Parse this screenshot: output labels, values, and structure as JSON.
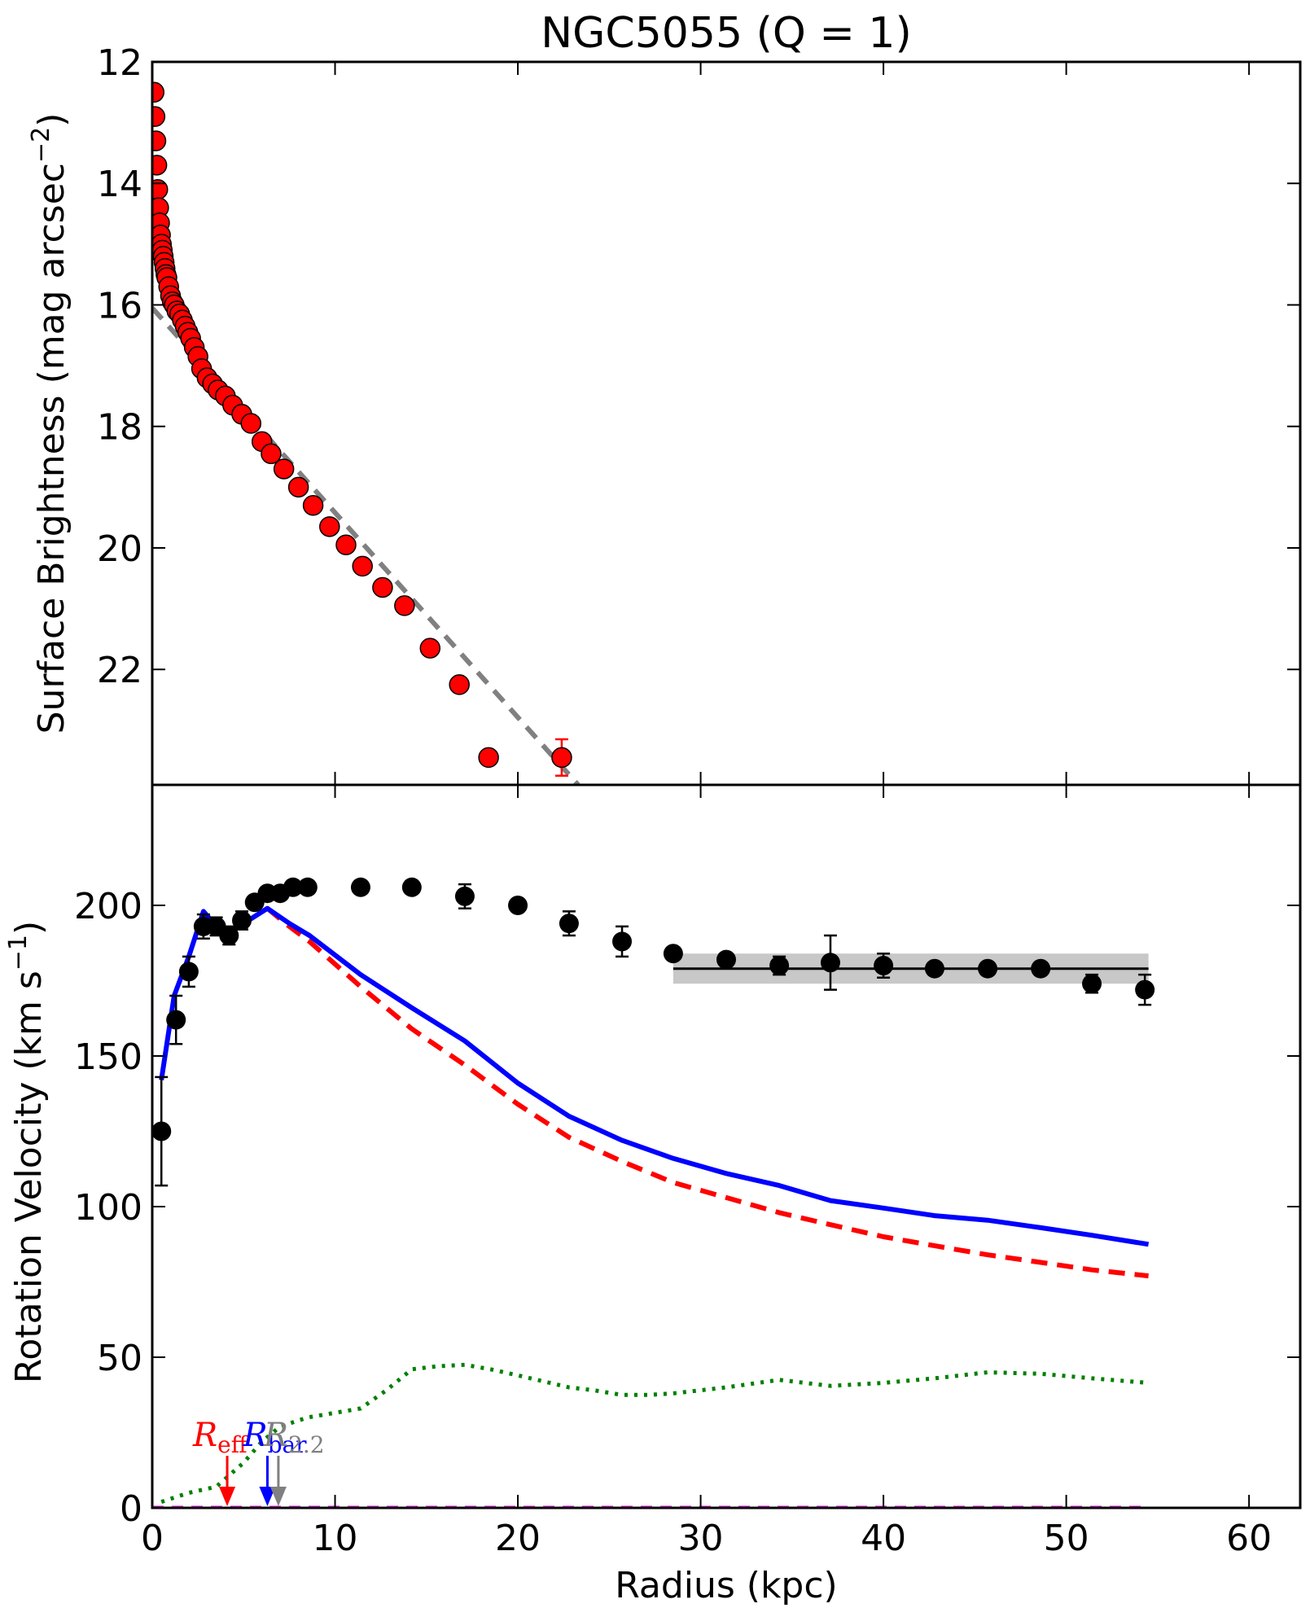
{
  "chart_data": [
    {
      "type": "scatter",
      "panel": "surface-brightness",
      "title": "NGC5055 (Q = 1)",
      "xlabel": "",
      "ylabel": "Surface Brightness (mag arcsec",
      "ylabel_sup": "−2",
      "ylabel_tail": ")",
      "xlim": [
        0,
        62.8
      ],
      "ylim": [
        12,
        23.9
      ],
      "y_inverted": true,
      "yticks": [
        12,
        14,
        16,
        18,
        20,
        22
      ],
      "xticks": [
        0,
        10,
        20,
        30,
        40,
        50,
        60
      ],
      "grid": false,
      "colors": {
        "points": "#ff0000",
        "fit": "#808080"
      },
      "series": [
        {
          "kind": "points",
          "x": [
            0.1,
            0.15,
            0.2,
            0.25,
            0.3,
            0.35,
            0.4,
            0.45,
            0.5,
            0.55,
            0.6,
            0.65,
            0.7,
            0.75,
            0.8,
            0.9,
            1.0,
            1.1,
            1.2,
            1.35,
            1.5,
            1.65,
            1.8,
            1.95,
            2.1,
            2.3,
            2.5,
            2.7,
            3.0,
            3.3,
            3.6,
            4.0,
            4.4,
            4.9,
            5.4,
            6.0,
            6.5,
            7.2,
            8.0,
            8.8,
            9.7,
            10.6,
            11.5,
            12.6,
            13.8,
            15.2,
            16.8,
            18.4,
            22.4
          ],
          "y": [
            12.5,
            12.9,
            13.3,
            13.7,
            14.1,
            14.4,
            14.65,
            14.85,
            15.0,
            15.1,
            15.2,
            15.3,
            15.4,
            15.5,
            15.55,
            15.7,
            15.85,
            15.95,
            16.0,
            16.1,
            16.15,
            16.25,
            16.35,
            16.45,
            16.55,
            16.7,
            16.85,
            17.05,
            17.2,
            17.3,
            17.4,
            17.5,
            17.65,
            17.8,
            17.95,
            18.25,
            18.45,
            18.7,
            19.0,
            19.3,
            19.65,
            19.95,
            20.3,
            20.65,
            20.95,
            21.65,
            22.25,
            23.45,
            23.45
          ],
          "err_index": 48,
          "err": 0.3
        },
        {
          "kind": "fit-dashed",
          "x": [
            0,
            23.3
          ],
          "y": [
            16.05,
            23.9
          ]
        }
      ]
    },
    {
      "type": "scatter",
      "panel": "rotation-curve",
      "xlabel": "Radius (kpc)",
      "ylabel": "Rotation Velocity (km s",
      "ylabel_sup": "−1",
      "ylabel_tail": ")",
      "xlim": [
        0,
        62.8
      ],
      "ylim": [
        0,
        240
      ],
      "xticks": [
        0,
        10,
        20,
        30,
        40,
        50,
        60
      ],
      "yticks": [
        0,
        50,
        100,
        150,
        200
      ],
      "grid": false,
      "colors": {
        "observed": "#000000",
        "total": "#0000ff",
        "stellar": "#ff0000",
        "gas": "#007f00",
        "zero": "#ff00ff",
        "band": "#c8c8c8"
      },
      "observed": {
        "x": [
          0.5,
          1.3,
          2.0,
          2.8,
          3.5,
          4.2,
          4.9,
          5.6,
          6.3,
          7.0,
          7.7,
          8.5,
          11.4,
          14.2,
          17.1,
          20.0,
          22.8,
          25.7,
          28.5,
          31.4,
          34.3,
          37.1,
          40.0,
          42.8,
          45.7,
          48.6,
          51.4,
          54.3
        ],
        "y": [
          125,
          162,
          178,
          193,
          193,
          190,
          195,
          201,
          204,
          204,
          206,
          206,
          206,
          206,
          203,
          200,
          194,
          188,
          184,
          182,
          180,
          181,
          180,
          179,
          179,
          179,
          174,
          172
        ],
        "err": [
          18,
          8,
          5,
          4,
          3,
          3,
          3,
          2,
          2,
          2,
          2,
          2,
          2,
          2,
          4,
          2,
          4,
          5,
          2,
          2,
          3,
          9,
          4,
          2,
          2,
          2,
          3,
          5
        ]
      },
      "flat_fit": {
        "x": [
          28.5,
          54.5
        ],
        "v": 179,
        "band": [
          174,
          184
        ]
      },
      "total_model": {
        "x": [
          0.5,
          1.2,
          2.0,
          2.8,
          3.5,
          4.3,
          5.0,
          6.3,
          7.5,
          8.6,
          11.4,
          14.2,
          17.1,
          20.0,
          22.8,
          25.7,
          28.5,
          31.4,
          34.3,
          37.1,
          40.0,
          42.8,
          45.7,
          48.6,
          51.4,
          54.5
        ],
        "y": [
          142,
          170,
          183,
          198,
          193,
          192,
          194,
          199,
          194,
          190,
          177,
          166,
          155,
          141,
          130,
          122,
          116,
          111,
          107,
          102,
          99.5,
          97,
          95.5,
          93,
          90.5,
          87.5
        ]
      },
      "stellar_model": {
        "x": [
          6.3,
          7.5,
          8.6,
          11.4,
          14.2,
          17.1,
          20.0,
          22.8,
          25.7,
          28.5,
          31.4,
          34.3,
          37.1,
          40.0,
          42.8,
          45.7,
          48.6,
          51.4,
          54.5
        ],
        "y": [
          199,
          193,
          188,
          173,
          159,
          147,
          134,
          123,
          115,
          108,
          103,
          98,
          94,
          90,
          87,
          84,
          81.5,
          79,
          77
        ]
      },
      "gas_model": {
        "x": [
          0.5,
          2.0,
          3.5,
          5.0,
          6.0,
          7.0,
          8.5,
          11.4,
          12.8,
          14.2,
          15.6,
          17.1,
          18.5,
          20.0,
          21.4,
          22.8,
          24.2,
          25.7,
          27.1,
          28.5,
          31.4,
          34.3,
          37.1,
          40.0,
          42.8,
          45.7,
          48.6,
          51.4,
          54.5
        ],
        "y": [
          2,
          5,
          7,
          15,
          22,
          27,
          30,
          33,
          39,
          46,
          47,
          47.5,
          46,
          44,
          42,
          40,
          39,
          37.5,
          37.5,
          38,
          40,
          42.5,
          40.5,
          41.5,
          43,
          45,
          44.5,
          43,
          41.5
        ]
      },
      "zero_model": {
        "x": [
          0,
          54.5
        ],
        "y": [
          0,
          0
        ]
      },
      "markers": [
        {
          "name": "R_eff",
          "main": "R",
          "sub": "eff",
          "x": 4.1,
          "color": "#ff0000"
        },
        {
          "name": "R_bar",
          "main": "R",
          "sub": "bar",
          "x": 6.3,
          "color": "#0000ff"
        },
        {
          "name": "R_2.2",
          "main": "R",
          "sub": "2.2",
          "x": 6.9,
          "color": "#808080"
        }
      ]
    }
  ]
}
